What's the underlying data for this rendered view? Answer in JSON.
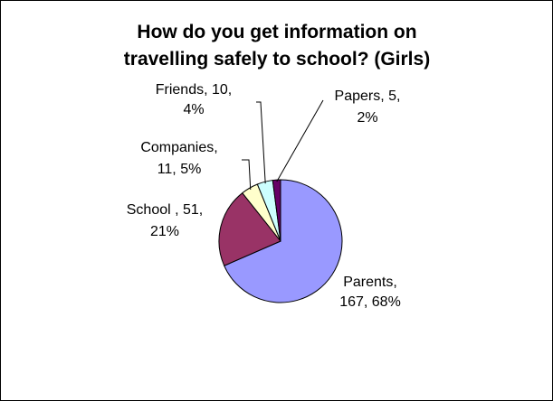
{
  "chart_data": {
    "type": "pie",
    "title_lines": [
      "How do you get information on",
      "travelling safely to school? (Girls)"
    ],
    "slices": [
      {
        "name": "Parents",
        "value": 167,
        "percent": "68%",
        "color": "#9999ff",
        "label_lines": [
          "Parents,",
          "167, 68%"
        ]
      },
      {
        "name": "School",
        "value": 51,
        "percent": "21%",
        "color": "#993366",
        "label_lines": [
          "School , 51,",
          "21%"
        ]
      },
      {
        "name": "Companies",
        "value": 11,
        "percent": "5%",
        "color": "#ffffcc",
        "label_lines": [
          "Companies,",
          "11, 5%"
        ]
      },
      {
        "name": "Friends",
        "value": 10,
        "percent": "4%",
        "color": "#ccffff",
        "label_lines": [
          "Friends, 10,",
          "4%"
        ]
      },
      {
        "name": "Papers",
        "value": 5,
        "percent": "2%",
        "color": "#660066",
        "label_lines": [
          "Papers, 5,",
          "2%"
        ]
      }
    ],
    "legend": "none",
    "start_angle_deg": 0,
    "direction": "clockwise"
  }
}
